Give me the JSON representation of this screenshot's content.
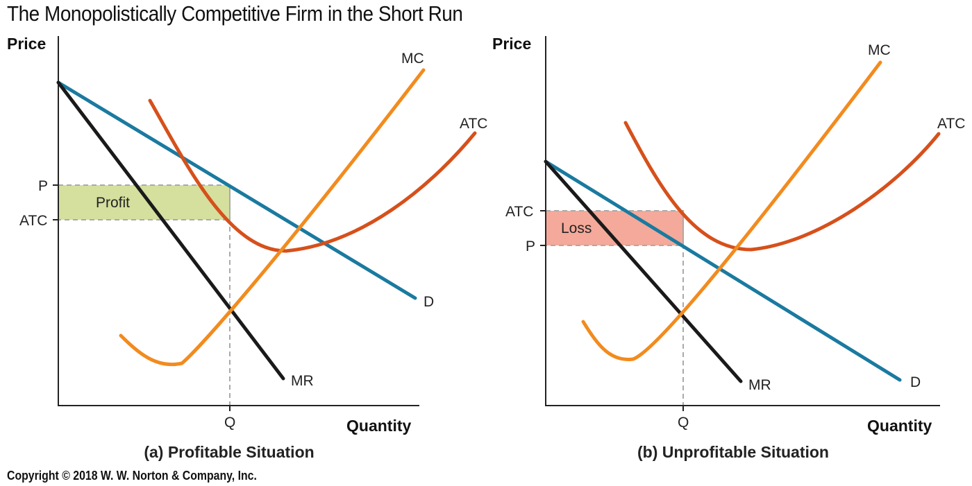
{
  "title": "The Monopolistically Competitive Firm in the Short Run",
  "copyright": "Copyright © 2018 W. W. Norton & Company, Inc.",
  "colors": {
    "demand": "#1a7aa0",
    "mr": "#1a1a1a",
    "mc": "#f28b1e",
    "atc": "#d6501b",
    "profit_fill": "#d5df9e",
    "loss_fill": "#f4a99a",
    "guide": "#aaaaaa"
  },
  "panel_a": {
    "caption": "(a) Profitable Situation",
    "y_axis_title": "Price",
    "x_axis_title": "Quantity",
    "curve_labels": {
      "mc": "MC",
      "atc": "ATC",
      "demand": "D",
      "mr": "MR"
    },
    "tick_labels": {
      "p": "P",
      "atc": "ATC",
      "q": "Q"
    },
    "area_label": "Profit"
  },
  "panel_b": {
    "caption": "(b) Unprofitable Situation",
    "y_axis_title": "Price",
    "x_axis_title": "Quantity",
    "curve_labels": {
      "mc": "MC",
      "atc": "ATC",
      "demand": "D",
      "mr": "MR"
    },
    "tick_labels": {
      "p": "P",
      "atc": "ATC",
      "q": "Q"
    },
    "area_label": "Loss"
  }
}
